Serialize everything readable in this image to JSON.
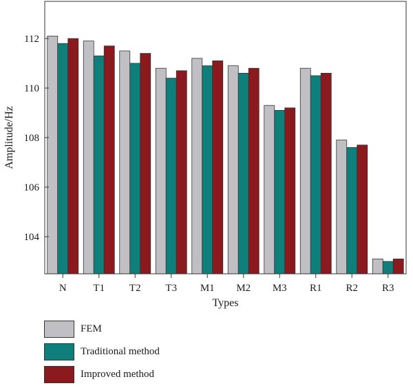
{
  "chart_data": {
    "type": "bar",
    "categories": [
      "N",
      "T1",
      "T2",
      "T3",
      "M1",
      "M2",
      "M3",
      "R1",
      "R2",
      "R3"
    ],
    "series": [
      {
        "name": "FEM",
        "color": "#c0c0c4",
        "values": [
          112.1,
          111.9,
          111.5,
          110.8,
          111.2,
          110.9,
          109.3,
          110.8,
          107.9,
          103.1
        ]
      },
      {
        "name": "Traditional method",
        "color": "#0f7f7c",
        "values": [
          111.8,
          111.3,
          111.0,
          110.4,
          110.9,
          110.6,
          109.1,
          110.5,
          107.6,
          103.0
        ]
      },
      {
        "name": "Improved method",
        "color": "#8b1a1f",
        "values": [
          112.0,
          111.7,
          111.4,
          110.7,
          111.1,
          110.8,
          109.2,
          110.6,
          107.7,
          103.1
        ]
      }
    ],
    "xlabel": "Types",
    "ylabel": "Amplitude/Hz",
    "ylim": [
      102.5,
      113.5
    ],
    "yticks": [
      104,
      106,
      108,
      110,
      112
    ],
    "grid": false,
    "legend_position": "bottom-left"
  }
}
